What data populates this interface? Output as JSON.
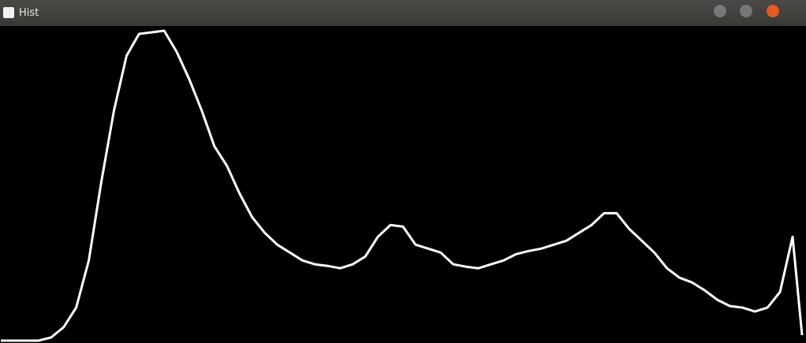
{
  "window": {
    "title": "Hist"
  },
  "chart_data": {
    "type": "line",
    "color": "#ffffff",
    "x": [
      0,
      4,
      8,
      12,
      16,
      20,
      24,
      28,
      32,
      36,
      40,
      44,
      48,
      52,
      56,
      60,
      64,
      68,
      72,
      76,
      80,
      84,
      88,
      92,
      96,
      100,
      104,
      108,
      112,
      116,
      120,
      124,
      128,
      132,
      136,
      140,
      144,
      148,
      152,
      156,
      160,
      164,
      168,
      172,
      176,
      180,
      184,
      188,
      192,
      196,
      200,
      204,
      208,
      212,
      216,
      220,
      224,
      228,
      232,
      236,
      240,
      244,
      248,
      252,
      255
    ],
    "values": [
      0,
      0,
      0,
      0,
      4,
      17,
      42,
      102,
      202,
      292,
      362,
      390,
      392,
      394,
      367,
      332,
      292,
      247,
      222,
      187,
      157,
      137,
      122,
      112,
      102,
      97,
      95,
      92,
      97,
      107,
      132,
      147,
      145,
      122,
      117,
      112,
      97,
      94,
      92,
      97,
      102,
      110,
      114,
      117,
      122,
      127,
      137,
      147,
      162,
      162,
      142,
      127,
      112,
      92,
      80,
      74,
      64,
      52,
      44,
      42,
      37,
      42,
      62,
      132,
      7
    ],
    "xlim": [
      0,
      255
    ],
    "ylim": [
      0,
      400
    ]
  }
}
